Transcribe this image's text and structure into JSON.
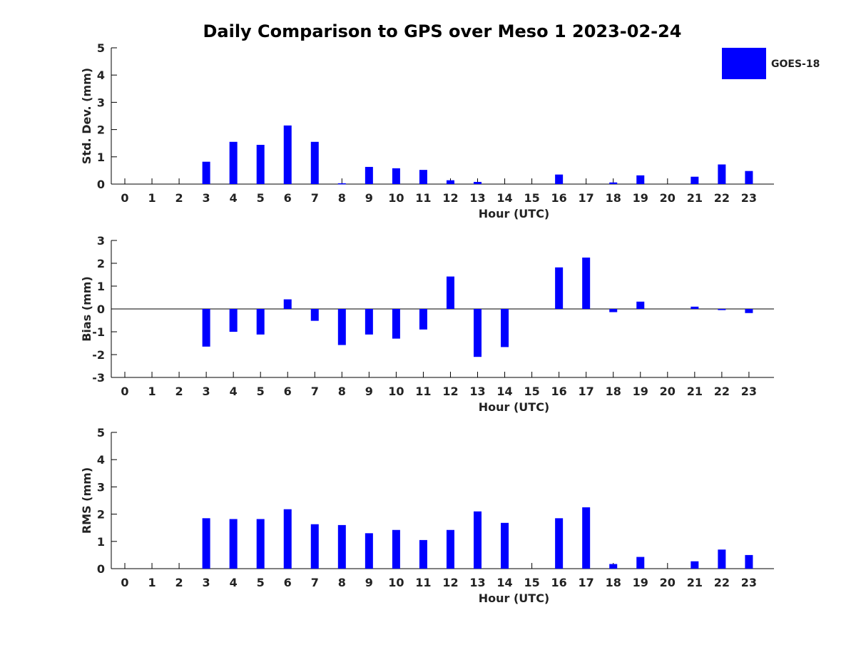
{
  "title": "Daily Comparison to GPS over Meso 1 2023-02-24",
  "legend": {
    "label": "GOES-18",
    "color": "#0000ff",
    "placement": "top-right"
  },
  "chart_data": [
    {
      "type": "bar",
      "ylabel": "Std. Dev. (mm)",
      "xlabel": "Hour (UTC)",
      "ylim": [
        0,
        5
      ],
      "yticks": [
        0,
        1,
        2,
        3,
        4,
        5
      ],
      "categories": [
        "0",
        "1",
        "2",
        "3",
        "4",
        "5",
        "6",
        "7",
        "8",
        "9",
        "10",
        "11",
        "12",
        "13",
        "14",
        "15",
        "16",
        "17",
        "18",
        "19",
        "20",
        "21",
        "22",
        "23"
      ],
      "series": [
        {
          "name": "GOES-18",
          "values": [
            0,
            0,
            0,
            0.82,
            1.55,
            1.44,
            2.15,
            1.55,
            0.03,
            0.63,
            0.58,
            0.52,
            0.14,
            0.08,
            0,
            0,
            0.35,
            0,
            0.06,
            0.32,
            0,
            0.27,
            0.72,
            0.48
          ]
        }
      ],
      "color": "#0000ff"
    },
    {
      "type": "bar",
      "ylabel": "Bias (mm)",
      "xlabel": "Hour (UTC)",
      "ylim": [
        -3,
        3
      ],
      "yticks": [
        -3,
        -2,
        -1,
        0,
        1,
        2,
        3
      ],
      "zero_line": true,
      "categories": [
        "0",
        "1",
        "2",
        "3",
        "4",
        "5",
        "6",
        "7",
        "8",
        "9",
        "10",
        "11",
        "12",
        "13",
        "14",
        "15",
        "16",
        "17",
        "18",
        "19",
        "20",
        "21",
        "22",
        "23"
      ],
      "series": [
        {
          "name": "GOES-18",
          "values": [
            0,
            0,
            0,
            -1.65,
            -1.0,
            -1.12,
            0.42,
            -0.52,
            -1.58,
            -1.12,
            -1.3,
            -0.9,
            1.42,
            -2.1,
            -1.67,
            0,
            1.82,
            2.25,
            -0.14,
            0.32,
            0,
            0.1,
            -0.05,
            -0.18
          ]
        }
      ],
      "color": "#0000ff"
    },
    {
      "type": "bar",
      "ylabel": "RMS (mm)",
      "xlabel": "Hour (UTC)",
      "ylim": [
        0,
        5
      ],
      "yticks": [
        0,
        1,
        2,
        3,
        4,
        5
      ],
      "categories": [
        "0",
        "1",
        "2",
        "3",
        "4",
        "5",
        "6",
        "7",
        "8",
        "9",
        "10",
        "11",
        "12",
        "13",
        "14",
        "15",
        "16",
        "17",
        "18",
        "19",
        "20",
        "21",
        "22",
        "23"
      ],
      "series": [
        {
          "name": "GOES-18",
          "values": [
            0,
            0,
            0,
            1.85,
            1.82,
            1.82,
            2.18,
            1.63,
            1.6,
            1.3,
            1.42,
            1.05,
            1.42,
            2.1,
            1.68,
            0,
            1.85,
            2.25,
            0.17,
            0.43,
            0,
            0.27,
            0.7,
            0.5
          ]
        }
      ],
      "color": "#0000ff"
    }
  ]
}
